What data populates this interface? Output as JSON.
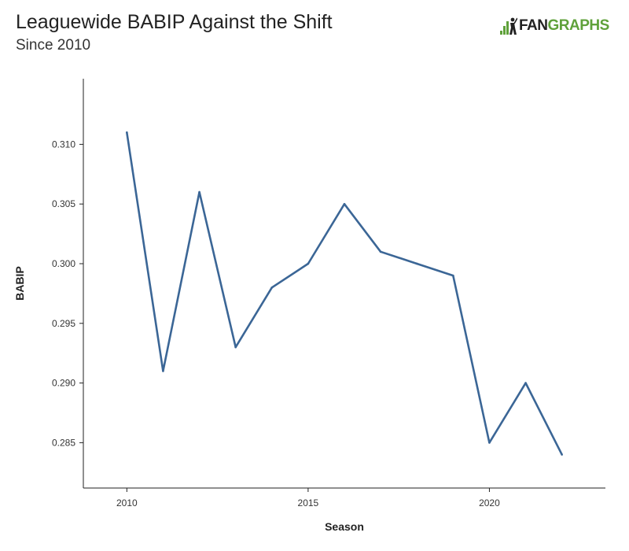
{
  "header": {
    "title": "Leaguewide BABIP Against the Shift",
    "subtitle": "Since 2010"
  },
  "logo": {
    "text_fan": "FAN",
    "text_graphs": "GRAPHS",
    "icon": "fangraphs-logo-icon",
    "colors": {
      "fan": "#222222",
      "graphs": "#5fa13a"
    }
  },
  "chart_data": {
    "type": "line",
    "title": "Leaguewide BABIP Against the Shift",
    "subtitle": "Since 2010",
    "xlabel": "Season",
    "ylabel": "BABIP",
    "x": [
      2010,
      2011,
      2012,
      2013,
      2014,
      2015,
      2016,
      2017,
      2018,
      2019,
      2020,
      2021,
      2022
    ],
    "series": [
      {
        "values": [
          0.311,
          0.291,
          0.306,
          0.293,
          0.298,
          0.3,
          0.305,
          0.301,
          0.3,
          0.299,
          0.285,
          0.29,
          0.284
        ],
        "color": "#3b6696"
      }
    ],
    "xticks": [
      2010,
      2015,
      2020
    ],
    "xtick_labels": [
      "2010",
      "2015",
      "2020"
    ],
    "yticks": [
      0.285,
      0.29,
      0.295,
      0.3,
      0.305,
      0.31
    ],
    "ytick_labels": [
      "0.285",
      "0.290",
      "0.295",
      "0.300",
      "0.305",
      "0.310"
    ],
    "xlim": [
      2008.8,
      2023.2
    ],
    "ylim": [
      0.2812,
      0.3155
    ],
    "grid": false,
    "legend": "none"
  }
}
